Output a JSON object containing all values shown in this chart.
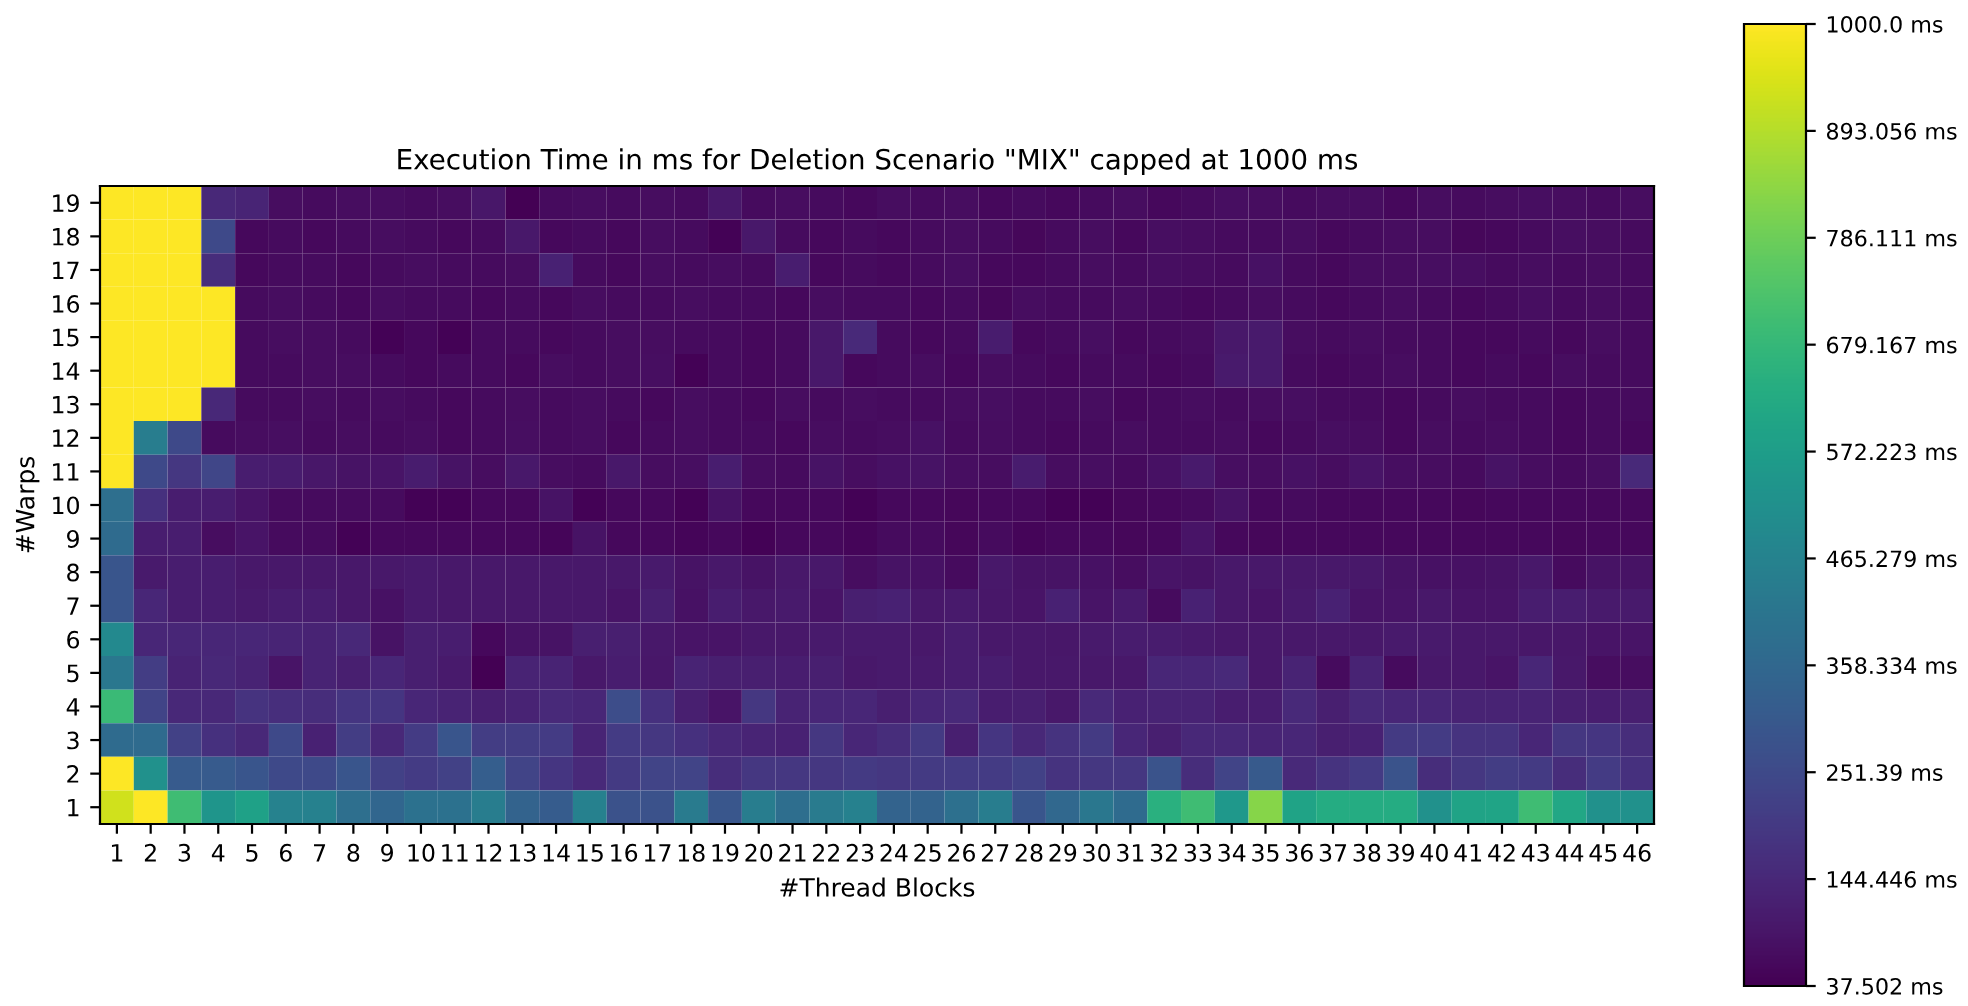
{
  "chart_data": {
    "type": "heatmap",
    "title": "Execution Time in ms for Deletion Scenario \"MIX\" capped at 1000 ms",
    "xlabel": "#Thread Blocks",
    "ylabel": "#Warps",
    "categories": [
      "1",
      "2",
      "3",
      "4",
      "5",
      "6",
      "7",
      "8",
      "9",
      "10",
      "11",
      "12",
      "13",
      "14",
      "15",
      "16",
      "17",
      "18",
      "19",
      "20",
      "21",
      "22",
      "23",
      "24",
      "25",
      "26",
      "27",
      "28",
      "29",
      "30",
      "31",
      "32",
      "33",
      "34",
      "35",
      "36",
      "37",
      "38",
      "39",
      "40",
      "41",
      "42",
      "43",
      "44",
      "45",
      "46"
    ],
    "y_categories": [
      "19",
      "18",
      "17",
      "16",
      "15",
      "14",
      "13",
      "12",
      "11",
      "10",
      "9",
      "8",
      "7",
      "6",
      "5",
      "4",
      "3",
      "2",
      "1"
    ],
    "cells": [
      [
        1000,
        1000,
        1000,
        145,
        135,
        70,
        65,
        70,
        70,
        65,
        70,
        95,
        40,
        65,
        70,
        65,
        70,
        65,
        100,
        65,
        70,
        65,
        60,
        70,
        65,
        70,
        60,
        65,
        60,
        65,
        70,
        60,
        65,
        75,
        70,
        65,
        70,
        70,
        60,
        70,
        65,
        70,
        75,
        70,
        65,
        70
      ],
      [
        1000,
        1000,
        1000,
        250,
        60,
        65,
        60,
        65,
        70,
        65,
        60,
        65,
        100,
        60,
        65,
        60,
        70,
        65,
        45,
        100,
        65,
        60,
        65,
        60,
        65,
        70,
        65,
        55,
        65,
        70,
        60,
        75,
        70,
        65,
        65,
        70,
        60,
        65,
        70,
        70,
        55,
        60,
        65,
        75,
        70,
        65
      ],
      [
        1000,
        1000,
        1000,
        160,
        60,
        65,
        65,
        60,
        65,
        70,
        65,
        65,
        70,
        125,
        65,
        60,
        70,
        65,
        70,
        65,
        115,
        60,
        65,
        60,
        65,
        75,
        60,
        60,
        65,
        70,
        65,
        75,
        70,
        65,
        80,
        65,
        60,
        70,
        70,
        75,
        75,
        65,
        70,
        65,
        70,
        65
      ],
      [
        1000,
        1000,
        1000,
        1000,
        65,
        70,
        65,
        60,
        70,
        65,
        65,
        60,
        65,
        60,
        70,
        65,
        65,
        70,
        65,
        65,
        60,
        70,
        65,
        65,
        60,
        65,
        55,
        70,
        65,
        65,
        70,
        65,
        60,
        65,
        70,
        65,
        60,
        65,
        70,
        65,
        60,
        65,
        75,
        65,
        70,
        65
      ],
      [
        1000,
        1000,
        1000,
        1000,
        65,
        70,
        70,
        65,
        45,
        60,
        45,
        65,
        65,
        60,
        65,
        70,
        70,
        65,
        65,
        60,
        65,
        100,
        150,
        65,
        60,
        65,
        110,
        60,
        65,
        75,
        60,
        65,
        70,
        100,
        105,
        70,
        65,
        70,
        65,
        65,
        60,
        60,
        65,
        60,
        70,
        65
      ],
      [
        1000,
        1000,
        1000,
        1000,
        65,
        65,
        70,
        70,
        65,
        60,
        65,
        65,
        60,
        70,
        65,
        70,
        75,
        45,
        65,
        60,
        65,
        100,
        60,
        65,
        70,
        60,
        70,
        65,
        60,
        65,
        65,
        60,
        65,
        105,
        105,
        65,
        60,
        65,
        70,
        65,
        60,
        65,
        60,
        70,
        65,
        65
      ],
      [
        1000,
        1000,
        1000,
        145,
        65,
        65,
        70,
        65,
        70,
        65,
        60,
        65,
        70,
        65,
        70,
        65,
        60,
        70,
        65,
        60,
        70,
        65,
        70,
        65,
        65,
        70,
        75,
        65,
        65,
        70,
        60,
        65,
        70,
        65,
        70,
        75,
        65,
        65,
        60,
        65,
        70,
        65,
        65,
        60,
        65,
        65
      ],
      [
        1000,
        440,
        250,
        65,
        70,
        75,
        65,
        70,
        65,
        70,
        60,
        65,
        75,
        65,
        70,
        60,
        65,
        70,
        65,
        65,
        60,
        70,
        65,
        70,
        80,
        65,
        70,
        65,
        60,
        65,
        70,
        65,
        65,
        70,
        60,
        65,
        75,
        70,
        60,
        70,
        65,
        70,
        65,
        60,
        65,
        60
      ],
      [
        1000,
        250,
        190,
        240,
        115,
        110,
        95,
        85,
        90,
        110,
        85,
        70,
        100,
        70,
        65,
        100,
        70,
        75,
        115,
        70,
        65,
        85,
        70,
        80,
        85,
        75,
        70,
        110,
        70,
        75,
        65,
        80,
        105,
        75,
        70,
        80,
        70,
        90,
        75,
        70,
        65,
        85,
        70,
        65,
        75,
        150
      ],
      [
        385,
        170,
        115,
        115,
        90,
        65,
        65,
        65,
        65,
        45,
        45,
        60,
        60,
        85,
        45,
        60,
        60,
        45,
        85,
        60,
        60,
        60,
        45,
        60,
        60,
        55,
        60,
        60,
        45,
        45,
        55,
        60,
        65,
        85,
        60,
        65,
        60,
        60,
        60,
        60,
        55,
        60,
        60,
        60,
        60,
        60
      ],
      [
        370,
        115,
        115,
        70,
        90,
        65,
        65,
        45,
        60,
        60,
        60,
        60,
        60,
        50,
        85,
        60,
        60,
        50,
        60,
        45,
        60,
        60,
        50,
        65,
        65,
        55,
        65,
        50,
        60,
        60,
        55,
        60,
        90,
        60,
        55,
        60,
        60,
        60,
        60,
        60,
        60,
        60,
        60,
        55,
        60,
        60
      ],
      [
        290,
        105,
        115,
        115,
        100,
        100,
        100,
        100,
        100,
        105,
        100,
        100,
        100,
        100,
        100,
        100,
        105,
        85,
        100,
        85,
        100,
        100,
        70,
        85,
        80,
        65,
        100,
        85,
        85,
        80,
        70,
        90,
        85,
        100,
        100,
        100,
        100,
        100,
        85,
        80,
        80,
        85,
        100,
        65,
        85,
        85
      ],
      [
        290,
        140,
        115,
        115,
        105,
        115,
        115,
        100,
        80,
        105,
        100,
        100,
        100,
        100,
        100,
        90,
        120,
        80,
        115,
        100,
        105,
        90,
        120,
        125,
        100,
        105,
        95,
        90,
        125,
        90,
        105,
        65,
        125,
        100,
        90,
        105,
        125,
        90,
        90,
        100,
        90,
        90,
        115,
        115,
        105,
        105
      ],
      [
        490,
        140,
        140,
        140,
        140,
        135,
        130,
        145,
        85,
        120,
        115,
        60,
        85,
        85,
        120,
        120,
        100,
        90,
        90,
        100,
        100,
        105,
        105,
        105,
        100,
        115,
        100,
        100,
        95,
        105,
        110,
        110,
        105,
        100,
        100,
        100,
        100,
        100,
        105,
        105,
        100,
        100,
        95,
        95,
        90,
        90
      ],
      [
        420,
        210,
        130,
        145,
        130,
        90,
        130,
        120,
        140,
        120,
        105,
        40,
        130,
        130,
        100,
        115,
        95,
        130,
        120,
        120,
        115,
        120,
        100,
        105,
        105,
        115,
        115,
        100,
        100,
        100,
        100,
        140,
        140,
        150,
        100,
        130,
        65,
        130,
        65,
        100,
        100,
        90,
        140,
        100,
        70,
        70
      ],
      [
        690,
        230,
        145,
        145,
        180,
        165,
        160,
        185,
        185,
        140,
        130,
        120,
        130,
        150,
        140,
        260,
        170,
        120,
        90,
        190,
        130,
        140,
        140,
        120,
        140,
        150,
        115,
        120,
        100,
        150,
        125,
        130,
        130,
        115,
        115,
        150,
        120,
        150,
        140,
        140,
        130,
        130,
        130,
        120,
        115,
        120
      ],
      [
        370,
        370,
        225,
        170,
        145,
        250,
        125,
        210,
        145,
        205,
        290,
        210,
        210,
        205,
        135,
        205,
        190,
        170,
        145,
        135,
        125,
        190,
        140,
        160,
        200,
        120,
        185,
        145,
        180,
        200,
        140,
        120,
        145,
        145,
        135,
        140,
        120,
        125,
        200,
        205,
        180,
        180,
        140,
        190,
        185,
        160
      ],
      [
        1000,
        520,
        310,
        310,
        290,
        250,
        250,
        290,
        225,
        205,
        225,
        320,
        230,
        185,
        150,
        200,
        230,
        230,
        160,
        190,
        190,
        190,
        200,
        190,
        200,
        205,
        205,
        225,
        180,
        190,
        190,
        285,
        160,
        230,
        305,
        150,
        180,
        205,
        285,
        160,
        190,
        210,
        200,
        160,
        205,
        170
      ],
      [
        930,
        1000,
        700,
        540,
        590,
        460,
        455,
        385,
        350,
        395,
        395,
        440,
        340,
        315,
        455,
        280,
        280,
        435,
        295,
        440,
        380,
        435,
        455,
        340,
        340,
        390,
        440,
        290,
        360,
        420,
        370,
        650,
        700,
        550,
        827,
        595,
        630,
        630,
        630,
        520,
        595,
        600,
        700,
        610,
        520,
        520
      ]
    ],
    "clim": [
      37.502,
      1000.0
    ],
    "cticks": [
      {
        "value": 37.502,
        "label": "37.502 ms"
      },
      {
        "value": 144.446,
        "label": "144.446 ms"
      },
      {
        "value": 251.39,
        "label": "251.39 ms"
      },
      {
        "value": 358.334,
        "label": "358.334 ms"
      },
      {
        "value": 465.279,
        "label": "465.279 ms"
      },
      {
        "value": 572.223,
        "label": "572.223 ms"
      },
      {
        "value": 679.167,
        "label": "679.167 ms"
      },
      {
        "value": 786.111,
        "label": "786.111 ms"
      },
      {
        "value": 893.056,
        "label": "893.056 ms"
      },
      {
        "value": 1000.0,
        "label": "1000.0 ms"
      }
    ],
    "grid": false
  }
}
